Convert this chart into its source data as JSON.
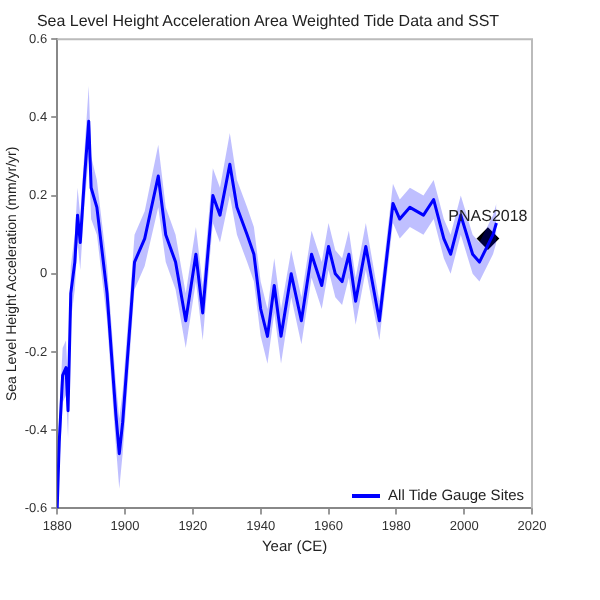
{
  "chart_data": {
    "type": "line",
    "title": "Sea Level Height Acceleration Area Weighted Tide Data and SST",
    "xlabel": "Year (CE)",
    "ylabel": "Sea Level Height Acceleration (mm/yr/yr)",
    "xlim": [
      1880,
      2020
    ],
    "xticks": [
      1880,
      1900,
      1920,
      1940,
      1960,
      1980,
      2000,
      2020
    ],
    "ylim": [
      -0.6,
      0.6
    ],
    "yticks": [
      -0.6,
      -0.4,
      -0.2,
      0.0,
      0.2,
      0.4,
      0.6
    ],
    "grid": false,
    "legend": "bottom right",
    "annotations": [
      {
        "text": "PNAS2018",
        "x": 2007,
        "y": 0.09
      }
    ],
    "series": [
      {
        "name": "All Tide Gauge Sites",
        "type": "line",
        "color": "#0000ff",
        "marker": "none",
        "x": [
          1880,
          1880.6,
          1881.6,
          1882.6,
          1883.2,
          1884,
          1885.2,
          1886,
          1886.8,
          1888,
          1889.3,
          1890,
          1891.7,
          1894.7,
          1897.3,
          1898.3,
          1899.3,
          1901.8,
          1902.8,
          1905.8,
          1909.8,
          1912,
          1914.9,
          1917.9,
          1920.9,
          1922.9,
          1925.9,
          1928,
          1930.9,
          1933,
          1936,
          1938,
          1940,
          1942,
          1944,
          1946,
          1949,
          1952,
          1955,
          1958,
          1960,
          1962,
          1964,
          1966,
          1968,
          1971,
          1975,
          1979,
          1981,
          1984,
          1988,
          1991,
          1994,
          1996,
          1999,
          2002.5,
          2004.5,
          2008.5,
          2009.5
        ],
        "values": [
          -0.6,
          -0.43,
          -0.26,
          -0.24,
          -0.35,
          -0.05,
          0.03,
          0.15,
          0.08,
          0.24,
          0.39,
          0.22,
          0.17,
          -0.05,
          -0.36,
          -0.46,
          -0.38,
          -0.09,
          0.03,
          0.09,
          0.25,
          0.1,
          0.03,
          -0.12,
          0.05,
          -0.1,
          0.2,
          0.15,
          0.28,
          0.17,
          0.1,
          0.05,
          -0.09,
          -0.16,
          -0.03,
          -0.16,
          0.0,
          -0.12,
          0.05,
          -0.03,
          0.07,
          0.0,
          -0.02,
          0.05,
          -0.07,
          0.07,
          -0.12,
          0.18,
          0.14,
          0.17,
          0.15,
          0.19,
          0.09,
          0.05,
          0.15,
          0.05,
          0.03,
          0.1,
          0.13
        ],
        "lower": [
          -0.6,
          -0.5,
          -0.33,
          -0.31,
          -0.42,
          -0.12,
          -0.04,
          0.08,
          0.01,
          0.17,
          0.3,
          0.14,
          0.1,
          -0.12,
          -0.44,
          -0.55,
          -0.46,
          -0.16,
          -0.04,
          0.02,
          0.17,
          0.03,
          -0.04,
          -0.19,
          -0.02,
          -0.17,
          0.13,
          0.08,
          0.2,
          0.1,
          0.03,
          -0.02,
          -0.16,
          -0.23,
          -0.1,
          -0.23,
          -0.06,
          -0.18,
          -0.01,
          -0.09,
          0.01,
          -0.06,
          -0.08,
          -0.01,
          -0.13,
          0.01,
          -0.17,
          0.13,
          0.09,
          0.12,
          0.1,
          0.14,
          0.04,
          0.0,
          0.1,
          0.0,
          -0.02,
          0.05,
          0.08
        ],
        "upper": [
          -0.53,
          -0.36,
          -0.19,
          -0.17,
          -0.28,
          0.02,
          0.1,
          0.22,
          0.15,
          0.31,
          0.48,
          0.3,
          0.24,
          0.02,
          -0.28,
          -0.37,
          -0.3,
          -0.02,
          0.1,
          0.16,
          0.33,
          0.17,
          0.1,
          -0.05,
          0.12,
          -0.03,
          0.27,
          0.22,
          0.36,
          0.24,
          0.17,
          0.12,
          -0.02,
          -0.09,
          0.04,
          -0.09,
          0.06,
          -0.06,
          0.11,
          0.03,
          0.13,
          0.06,
          0.04,
          0.11,
          -0.01,
          0.13,
          -0.07,
          0.23,
          0.19,
          0.22,
          0.2,
          0.24,
          0.14,
          0.1,
          0.2,
          0.1,
          0.08,
          0.15,
          0.18
        ]
      },
      {
        "type": "scatter",
        "color": "#000000",
        "marker": "diamond",
        "x": [
          2007
        ],
        "values": [
          0.09
        ]
      }
    ]
  }
}
